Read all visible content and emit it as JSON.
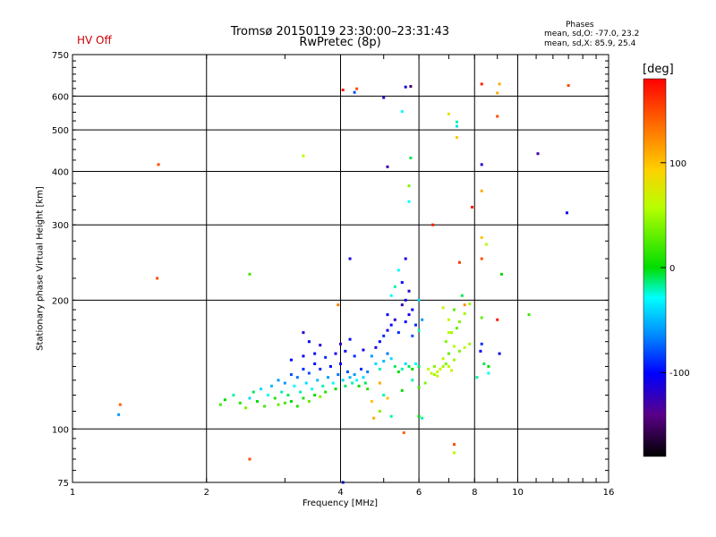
{
  "header": {
    "title": "Tromsø 20150119 23:30:00–23:31:43",
    "subtitle": "RwPretec (8p)",
    "status": "HV Off",
    "status_color": "#cc0000",
    "phases": {
      "heading": "Phases",
      "o_mode": "mean, sd,O: -77.0, 23.2",
      "x_mode": "mean, sd,X:  85.9, 25.4"
    }
  },
  "chart_data": {
    "type": "scatter",
    "title": "Tromsø 20150119 23:30:00–23:31:43",
    "subtitle": "RwPretec (8p)",
    "xlabel": "Frequency [MHz]",
    "ylabel": "Stationary phase Virtual Height [km]",
    "x_scale": "log",
    "y_scale": "log",
    "xlim": [
      1,
      16
    ],
    "ylim": [
      75,
      750
    ],
    "x_ticks": [
      1,
      2,
      4,
      6,
      8,
      10,
      16
    ],
    "y_ticks": [
      75,
      100,
      200,
      300,
      400,
      500,
      600,
      750
    ],
    "grid": true,
    "colorbar": {
      "label": "[deg]",
      "range": [
        -180,
        180
      ],
      "ticks": [
        100,
        0,
        -100
      ]
    },
    "series": [
      {
        "points": [
          [
            1.27,
            108,
            -60
          ],
          [
            1.28,
            114,
            140
          ],
          [
            1.55,
            225,
            150
          ],
          [
            1.56,
            415,
            150
          ],
          [
            2.5,
            85,
            150
          ],
          [
            2.5,
            230,
            20
          ],
          [
            3.3,
            435,
            60
          ],
          [
            4.05,
            620,
            170
          ],
          [
            4.3,
            612,
            -80
          ],
          [
            4.35,
            624,
            150
          ],
          [
            5.0,
            595,
            -120
          ],
          [
            5.6,
            630,
            -110
          ],
          [
            5.75,
            632,
            -150
          ],
          [
            5.5,
            552,
            -30
          ],
          [
            7.3,
            510,
            -40
          ],
          [
            7.3,
            522,
            -20
          ],
          [
            7.0,
            545,
            80
          ],
          [
            7.3,
            480,
            100
          ],
          [
            8.3,
            640,
            170
          ],
          [
            9.1,
            640,
            110
          ],
          [
            9.0,
            610,
            110
          ],
          [
            9.0,
            538,
            150
          ],
          [
            13.0,
            635,
            150
          ],
          [
            12.9,
            320,
            -110
          ],
          [
            11.1,
            440,
            -130
          ],
          [
            8.3,
            415,
            -120
          ],
          [
            8.3,
            360,
            110
          ],
          [
            8.3,
            280,
            100
          ],
          [
            8.5,
            270,
            60
          ],
          [
            7.9,
            330,
            170
          ],
          [
            5.1,
            410,
            -130
          ],
          [
            5.75,
            430,
            -10
          ],
          [
            5.7,
            370,
            40
          ],
          [
            5.7,
            340,
            -30
          ],
          [
            6.45,
            300,
            170
          ],
          [
            7.4,
            245,
            160
          ],
          [
            8.3,
            250,
            150
          ],
          [
            9.2,
            230,
            0
          ],
          [
            4.2,
            250,
            -110
          ],
          [
            3.95,
            195,
            130
          ],
          [
            7.6,
            195,
            120
          ],
          [
            8.3,
            182,
            30
          ],
          [
            9.0,
            180,
            170
          ],
          [
            10.6,
            185,
            20
          ],
          [
            2.15,
            114,
            20
          ],
          [
            2.2,
            117,
            0
          ],
          [
            2.3,
            120,
            -20
          ],
          [
            2.38,
            115,
            10
          ],
          [
            2.45,
            112,
            40
          ],
          [
            2.5,
            118,
            -40
          ],
          [
            2.55,
            122,
            -10
          ],
          [
            2.6,
            116,
            0
          ],
          [
            2.65,
            124,
            -40
          ],
          [
            2.7,
            113,
            20
          ],
          [
            2.75,
            120,
            -30
          ],
          [
            2.8,
            126,
            -50
          ],
          [
            2.85,
            118,
            10
          ],
          [
            2.9,
            114,
            30
          ],
          [
            2.95,
            122,
            -20
          ],
          [
            3.0,
            128,
            -60
          ],
          [
            3.05,
            120,
            -10
          ],
          [
            3.1,
            116,
            0
          ],
          [
            3.15,
            126,
            -30
          ],
          [
            3.2,
            132,
            -70
          ],
          [
            3.25,
            122,
            -20
          ],
          [
            3.3,
            118,
            10
          ],
          [
            3.35,
            128,
            -40
          ],
          [
            3.4,
            135,
            -80
          ],
          [
            3.45,
            124,
            -30
          ],
          [
            3.5,
            120,
            0
          ],
          [
            3.55,
            130,
            -50
          ],
          [
            3.6,
            138,
            -90
          ],
          [
            3.65,
            126,
            -20
          ],
          [
            3.7,
            122,
            10
          ],
          [
            3.75,
            132,
            -60
          ],
          [
            3.8,
            140,
            -100
          ],
          [
            3.85,
            128,
            -30
          ],
          [
            3.9,
            124,
            0
          ],
          [
            3.95,
            134,
            -70
          ],
          [
            4.0,
            142,
            -100
          ],
          [
            4.05,
            130,
            -40
          ],
          [
            4.1,
            126,
            -10
          ],
          [
            4.15,
            136,
            -80
          ],
          [
            4.2,
            132,
            -50
          ],
          [
            4.25,
            128,
            -20
          ],
          [
            4.3,
            134,
            -60
          ],
          [
            4.35,
            130,
            -30
          ],
          [
            4.4,
            126,
            0
          ],
          [
            4.45,
            138,
            -90
          ],
          [
            4.5,
            132,
            -40
          ],
          [
            4.55,
            128,
            -10
          ],
          [
            4.6,
            136,
            -70
          ],
          [
            3.0,
            115,
            20
          ],
          [
            3.2,
            113,
            10
          ],
          [
            3.4,
            116,
            30
          ],
          [
            3.6,
            119,
            40
          ],
          [
            2.9,
            130,
            -60
          ],
          [
            3.1,
            134,
            -80
          ],
          [
            3.3,
            138,
            -90
          ],
          [
            3.5,
            142,
            -100
          ],
          [
            3.1,
            145,
            -100
          ],
          [
            3.3,
            148,
            -110
          ],
          [
            3.5,
            150,
            -100
          ],
          [
            3.7,
            147,
            -90
          ],
          [
            3.9,
            150,
            -110
          ],
          [
            4.1,
            152,
            -100
          ],
          [
            4.3,
            148,
            -90
          ],
          [
            4.5,
            153,
            -110
          ],
          [
            3.4,
            160,
            -100
          ],
          [
            3.6,
            157,
            -110
          ],
          [
            4.0,
            158,
            -120
          ],
          [
            4.2,
            162,
            -100
          ],
          [
            3.3,
            168,
            -120
          ],
          [
            4.8,
            155,
            -110
          ],
          [
            4.9,
            160,
            -100
          ],
          [
            5.0,
            165,
            -90
          ],
          [
            5.1,
            170,
            -110
          ],
          [
            5.2,
            175,
            -100
          ],
          [
            5.3,
            180,
            -120
          ],
          [
            5.4,
            168,
            -90
          ],
          [
            4.7,
            148,
            -60
          ],
          [
            4.8,
            142,
            -40
          ],
          [
            4.9,
            138,
            -20
          ],
          [
            5.0,
            144,
            -50
          ],
          [
            5.1,
            150,
            -70
          ],
          [
            5.2,
            146,
            -40
          ],
          [
            5.3,
            140,
            -10
          ],
          [
            5.4,
            136,
            0
          ],
          [
            5.5,
            138,
            -20
          ],
          [
            5.6,
            142,
            -40
          ],
          [
            5.7,
            140,
            -10
          ],
          [
            5.8,
            138,
            0
          ],
          [
            5.9,
            142,
            -30
          ],
          [
            6.0,
            140,
            -10
          ],
          [
            5.6,
            178,
            -100
          ],
          [
            5.7,
            185,
            -110
          ],
          [
            5.8,
            190,
            -100
          ],
          [
            5.6,
            200,
            -110
          ],
          [
            5.7,
            210,
            -120
          ],
          [
            5.5,
            220,
            -100
          ],
          [
            5.4,
            235,
            -30
          ],
          [
            5.6,
            250,
            -110
          ],
          [
            5.2,
            205,
            -30
          ],
          [
            5.3,
            215,
            -20
          ],
          [
            5.1,
            185,
            -100
          ],
          [
            5.5,
            195,
            -120
          ],
          [
            5.9,
            175,
            -90
          ],
          [
            5.8,
            165,
            -80
          ],
          [
            6.0,
            170,
            -20
          ],
          [
            6.1,
            180,
            -60
          ],
          [
            6.0,
            200,
            -40
          ],
          [
            6.3,
            138,
            60
          ],
          [
            6.4,
            135,
            70
          ],
          [
            6.5,
            134,
            50
          ],
          [
            6.6,
            136,
            60
          ],
          [
            6.7,
            138,
            70
          ],
          [
            6.8,
            140,
            50
          ],
          [
            6.9,
            142,
            40
          ],
          [
            7.0,
            140,
            60
          ],
          [
            7.1,
            137,
            70
          ],
          [
            7.2,
            145,
            50
          ],
          [
            6.5,
            140,
            40
          ],
          [
            6.6,
            133,
            70
          ],
          [
            6.8,
            146,
            60
          ],
          [
            7.0,
            150,
            30
          ],
          [
            7.2,
            156,
            60
          ],
          [
            7.4,
            152,
            40
          ],
          [
            7.6,
            155,
            60
          ],
          [
            7.8,
            158,
            50
          ],
          [
            6.9,
            160,
            40
          ],
          [
            7.1,
            168,
            50
          ],
          [
            7.3,
            172,
            30
          ],
          [
            7.0,
            180,
            60
          ],
          [
            7.2,
            190,
            30
          ],
          [
            7.4,
            178,
            40
          ],
          [
            7.6,
            186,
            50
          ],
          [
            7.8,
            196,
            50
          ],
          [
            7.5,
            205,
            -10
          ],
          [
            6.8,
            192,
            70
          ],
          [
            6.0,
            125,
            20
          ],
          [
            6.2,
            128,
            40
          ],
          [
            5.5,
            123,
            0
          ],
          [
            5.0,
            120,
            -20
          ],
          [
            4.9,
            128,
            110
          ],
          [
            5.1,
            118,
            100
          ],
          [
            5.8,
            130,
            -20
          ],
          [
            4.6,
            124,
            10
          ],
          [
            4.7,
            116,
            100
          ],
          [
            4.9,
            110,
            40
          ],
          [
            5.2,
            107,
            -20
          ],
          [
            4.75,
            106,
            110
          ],
          [
            5.55,
            98,
            140
          ],
          [
            6.1,
            106,
            -20
          ],
          [
            6.0,
            107,
            0
          ],
          [
            8.25,
            152,
            -100
          ],
          [
            8.3,
            158,
            -90
          ],
          [
            9.1,
            150,
            -110
          ],
          [
            8.4,
            142,
            -10
          ],
          [
            8.6,
            140,
            0
          ],
          [
            8.1,
            132,
            -20
          ],
          [
            8.6,
            135,
            -30
          ],
          [
            4.05,
            75,
            -100
          ],
          [
            7.2,
            92,
            150
          ],
          [
            7.2,
            88,
            60
          ],
          [
            7.0,
            168,
            60
          ]
        ]
      }
    ]
  },
  "colors": {
    "grid": "#000000",
    "background": "#ffffff",
    "status": "#cc0000"
  }
}
